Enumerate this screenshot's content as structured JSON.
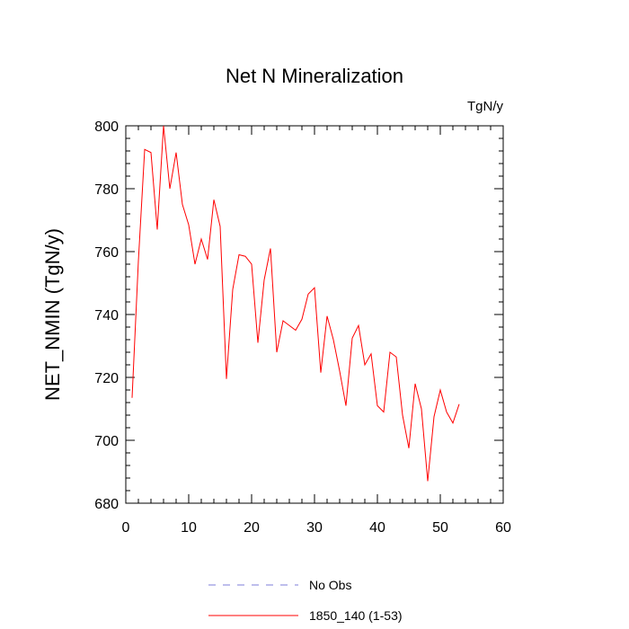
{
  "chart_data": {
    "type": "line",
    "title": "Net N Mineralization",
    "units": "TgN/y",
    "xlabel": "",
    "ylabel": "NET_NMIN  (TgN/y)",
    "xlim": [
      0,
      60
    ],
    "ylim": [
      680,
      800
    ],
    "xticks": [
      0,
      10,
      20,
      30,
      40,
      50,
      60
    ],
    "yticks": [
      680,
      700,
      720,
      740,
      760,
      780,
      800
    ],
    "grid": false,
    "legend_position": "bottom",
    "series": [
      {
        "name": "No Obs",
        "color": "#7d7dd8",
        "dash": "dashed",
        "x": [],
        "values": []
      },
      {
        "name": "1850_140 (1-53)",
        "color": "#ff0000",
        "dash": "solid",
        "x": [
          1,
          2,
          3,
          4,
          5,
          6,
          7,
          8,
          9,
          10,
          11,
          12,
          13,
          14,
          15,
          16,
          17,
          18,
          19,
          20,
          21,
          22,
          23,
          24,
          25,
          26,
          27,
          28,
          29,
          30,
          31,
          32,
          33,
          34,
          35,
          36,
          37,
          38,
          39,
          40,
          41,
          42,
          43,
          44,
          45,
          46,
          47,
          48,
          49,
          50,
          51,
          52,
          53
        ],
        "values": [
          713.5,
          757,
          792.5,
          791.5,
          767,
          800,
          780,
          791.5,
          775,
          768.5,
          756,
          764,
          757.5,
          776.5,
          768,
          719.5,
          748,
          759,
          758.5,
          756,
          731,
          751,
          761,
          728,
          738,
          736.5,
          735,
          738.5,
          746.5,
          748.5,
          721.5,
          739.5,
          732,
          722,
          711,
          732.5,
          736.5,
          724,
          727.5,
          711,
          709,
          728,
          726.5,
          708,
          697.5,
          718,
          710,
          687,
          707.5,
          716,
          709,
          705.5,
          711.5
        ]
      }
    ]
  }
}
